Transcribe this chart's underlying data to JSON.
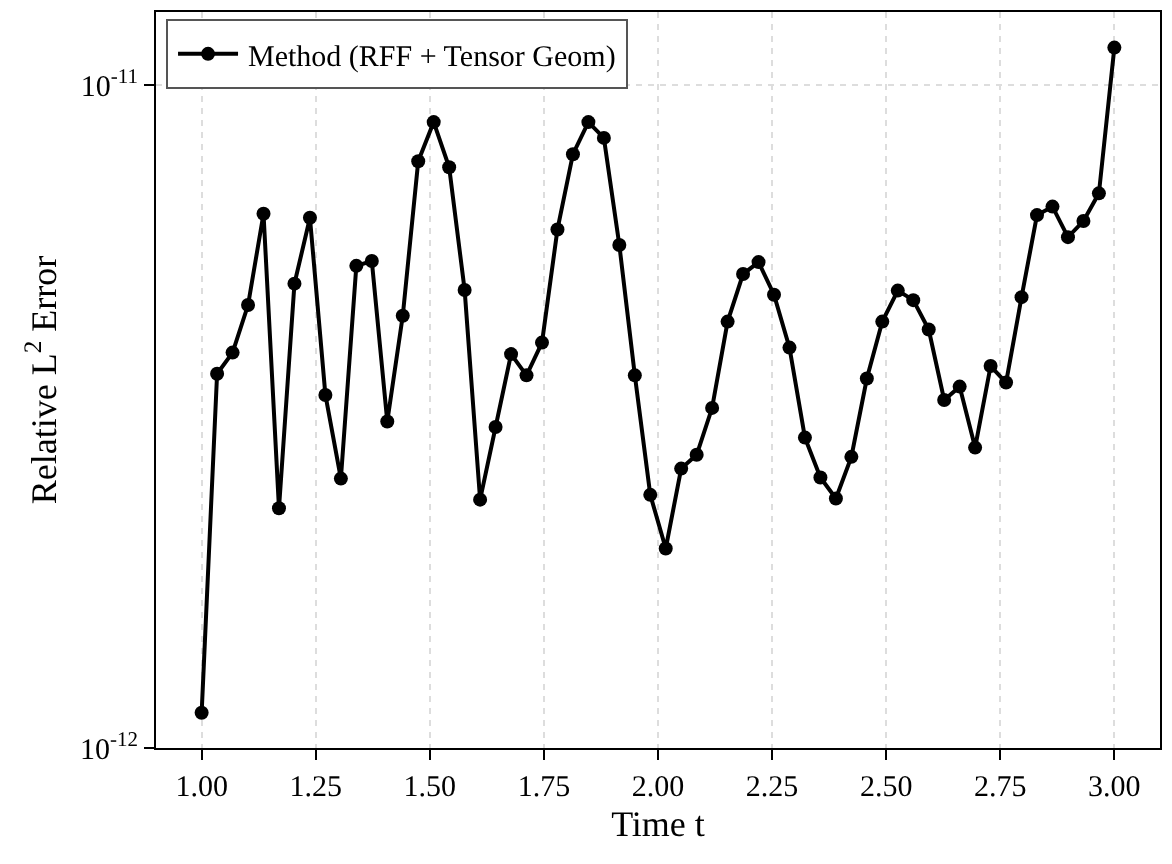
{
  "chart_data": {
    "type": "line",
    "xlabel": "Time t",
    "ylabel": "Relative L$^{2}$ Error",
    "x": [
      1.0,
      1.0339,
      1.0678,
      1.1017,
      1.1356,
      1.1695,
      1.2034,
      1.2373,
      1.2712,
      1.3051,
      1.339,
      1.3729,
      1.4068,
      1.4407,
      1.4746,
      1.5085,
      1.5424,
      1.5763,
      1.6102,
      1.6441,
      1.678,
      1.7119,
      1.7458,
      1.7797,
      1.8136,
      1.8475,
      1.8814,
      1.9153,
      1.9492,
      1.9831,
      2.0169,
      2.0508,
      2.0847,
      2.1186,
      2.1525,
      2.1864,
      2.2203,
      2.2542,
      2.2881,
      2.322,
      2.3559,
      2.3898,
      2.4237,
      2.4576,
      2.4915,
      2.5254,
      2.5593,
      2.5932,
      2.6271,
      2.661,
      2.6949,
      2.7288,
      2.7627,
      2.7966,
      2.8305,
      2.8644,
      2.8983,
      2.9322,
      2.9661,
      3.0
    ],
    "series": [
      {
        "name": "Method (RFF + Tensor Geom)",
        "color": "#000000",
        "values": [
          1.13e-12,
          3.67e-12,
          3.95e-12,
          4.66e-12,
          6.4e-12,
          2.3e-12,
          5.02e-12,
          6.31e-12,
          3.41e-12,
          2.55e-12,
          5.34e-12,
          5.43e-12,
          3.11e-12,
          4.49e-12,
          7.68e-12,
          8.8e-12,
          7.52e-12,
          4.91e-12,
          2.37e-12,
          3.05e-12,
          3.93e-12,
          3.65e-12,
          4.09e-12,
          6.06e-12,
          7.87e-12,
          8.8e-12,
          8.33e-12,
          5.74e-12,
          3.65e-12,
          2.41e-12,
          2e-12,
          2.64e-12,
          2.77e-12,
          3.26e-12,
          4.4e-12,
          5.19e-12,
          5.41e-12,
          4.83e-12,
          4.02e-12,
          2.94e-12,
          2.56e-12,
          2.38e-12,
          2.75e-12,
          3.61e-12,
          4.4e-12,
          4.9e-12,
          4.74e-12,
          4.28e-12,
          3.35e-12,
          3.51e-12,
          2.84e-12,
          3.77e-12,
          3.56e-12,
          4.79e-12,
          6.37e-12,
          6.56e-12,
          5.9e-12,
          6.24e-12,
          6.87e-12,
          1.14e-11
        ]
      }
    ],
    "xlim": [
      0.9,
      3.1
    ],
    "xticks": [
      {
        "value": 1.0,
        "label": "1.00"
      },
      {
        "value": 1.25,
        "label": "1.25"
      },
      {
        "value": 1.5,
        "label": "1.50"
      },
      {
        "value": 1.75,
        "label": "1.75"
      },
      {
        "value": 2.0,
        "label": "2.00"
      },
      {
        "value": 2.25,
        "label": "2.25"
      },
      {
        "value": 2.5,
        "label": "2.50"
      },
      {
        "value": 2.75,
        "label": "2.75"
      },
      {
        "value": 3.0,
        "label": "3.00"
      }
    ],
    "ylim": [
      1e-12,
      1.29e-11
    ],
    "yticks": [
      {
        "value": 1e-12,
        "label": "10$^{-12}$"
      },
      {
        "value": 1e-11,
        "label": "10$^{-11}$"
      }
    ],
    "log": "y",
    "grid": true,
    "legend": "top left",
    "marker": "circle",
    "line_style": "solid"
  }
}
